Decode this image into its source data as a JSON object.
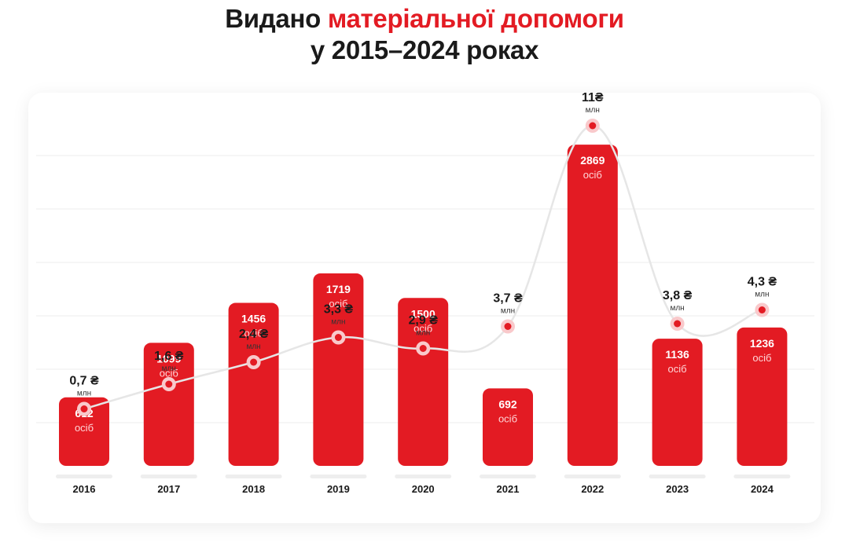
{
  "title": {
    "part1": "Видано ",
    "accent": "матеріальної допомоги",
    "line2": "у 2015–2024 роках"
  },
  "colors": {
    "bar": "#e31b23",
    "accent_text": "#e31b23",
    "line": "#e6e6e6",
    "grid": "#ededed",
    "text": "#1a1a1a"
  },
  "chart_data": {
    "type": "bar",
    "categories": [
      "2016",
      "2017",
      "2018",
      "2019",
      "2020",
      "2021",
      "2022",
      "2023",
      "2024"
    ],
    "series": [
      {
        "values": [
          612,
          1099,
          1456,
          1719,
          1500,
          692,
          2869,
          1136,
          1236
        ],
        "unit_label": "осіб"
      },
      {
        "values": [
          0.7,
          1.6,
          2.4,
          3.3,
          2.9,
          3.7,
          11,
          3.8,
          4.3
        ],
        "labels": [
          "0,7 ₴",
          "1,6 ₴",
          "2,4 ₴",
          "3,3 ₴",
          "2,9 ₴",
          "3,7 ₴",
          "11₴",
          "3,8 ₴",
          "4,3 ₴"
        ],
        "unit_label": "млн"
      }
    ],
    "grid": true,
    "legend": "none"
  }
}
